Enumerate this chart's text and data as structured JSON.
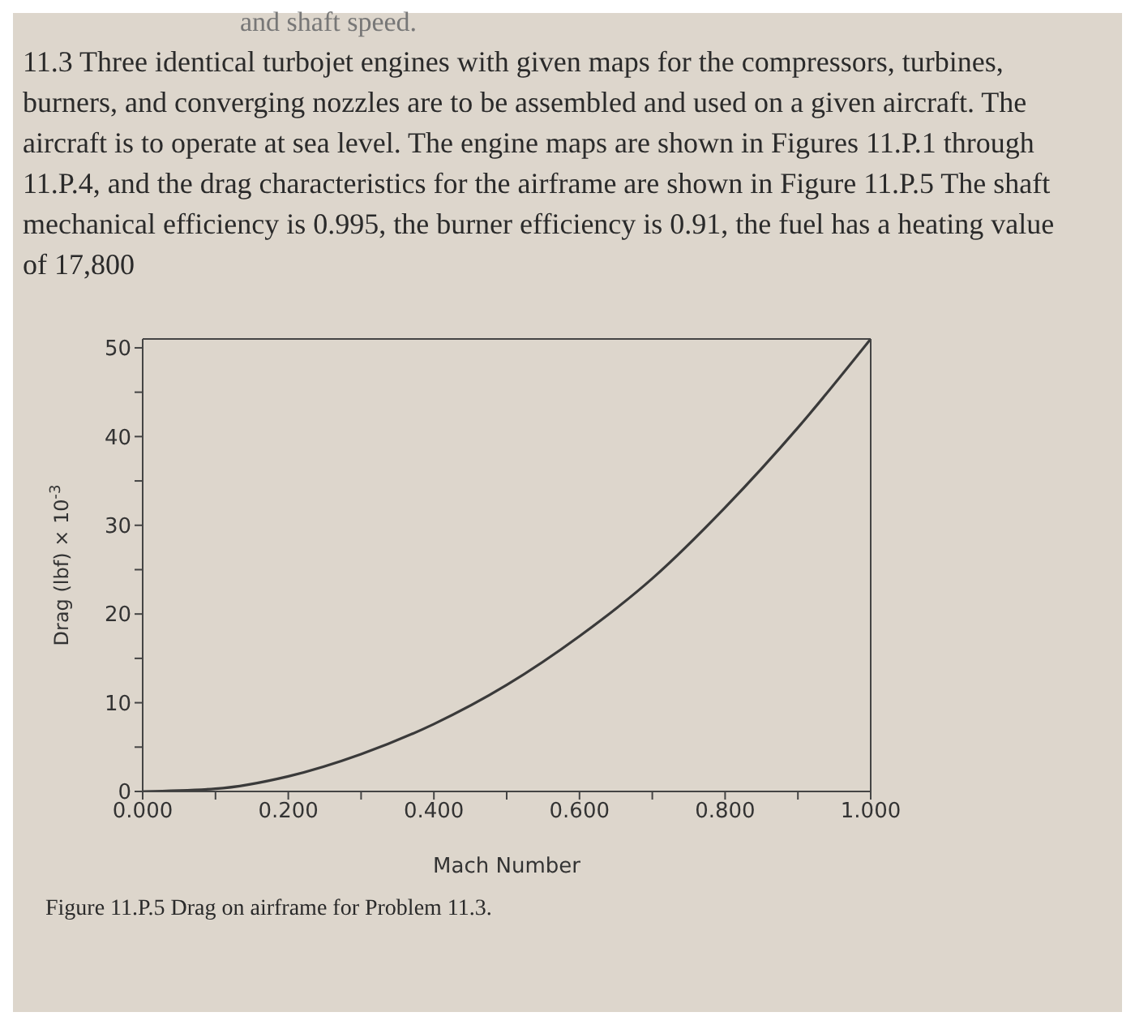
{
  "chart_data": {
    "type": "line",
    "title": "11.3 Three identical turbojet engines with given maps for the compressors, turbines, burners, and converging nozzles are to be assembled and used on a given aircraft. The aircraft is to operate at sea level. The engine maps are shown in Figures 11.P.1 through 11.P.4, and the drag characteristics for the airframe are shown in Figure 11.P.5 The shaft mechanical efficiency is 0.995, the burner efficiency is 0.91, the fuel has a heating value of 17,800",
    "annotations": [
      "and shaft speed.",
      "Figure 11.P.5 Drag on airframe for Problem 11.3."
    ],
    "xlabel": "Mach Number",
    "ylabel": "Drag (lbf) × 10$^{-3}$",
    "x": [
      0,
      0.1,
      0.2,
      0.3,
      0.4,
      0.5,
      0.6,
      0.7,
      0.8,
      0.9,
      1.0
    ],
    "series": [
      {
        "color": "#3a3a3a",
        "values": [
          0,
          0.3,
          1.7,
          4.2,
          7.6,
          12,
          17.5,
          24,
          32,
          41,
          51
        ]
      }
    ],
    "xlim": [
      0,
      1
    ],
    "xticks": [
      {
        "value": 0,
        "label": "0.000"
      },
      {
        "value": 0.1,
        "label": null
      },
      {
        "value": 0.2,
        "label": "0.200"
      },
      {
        "value": 0.3,
        "label": null
      },
      {
        "value": 0.4,
        "label": "0.400"
      },
      {
        "value": 0.5,
        "label": null
      },
      {
        "value": 0.6,
        "label": "0.600"
      },
      {
        "value": 0.7,
        "label": null
      },
      {
        "value": 0.8,
        "label": "0.800"
      },
      {
        "value": 0.9,
        "label": null
      },
      {
        "value": 1,
        "label": "1.000"
      }
    ],
    "ylim": [
      0,
      51
    ],
    "yticks": [
      0,
      {
        "value": 5,
        "label": null
      },
      10,
      {
        "value": 15,
        "label": null
      },
      20,
      {
        "value": 25,
        "label": null
      },
      30,
      {
        "value": 35,
        "label": null
      },
      40,
      {
        "value": 45,
        "label": null
      },
      50
    ],
    "marker": "none",
    "line_style": "solid"
  }
}
